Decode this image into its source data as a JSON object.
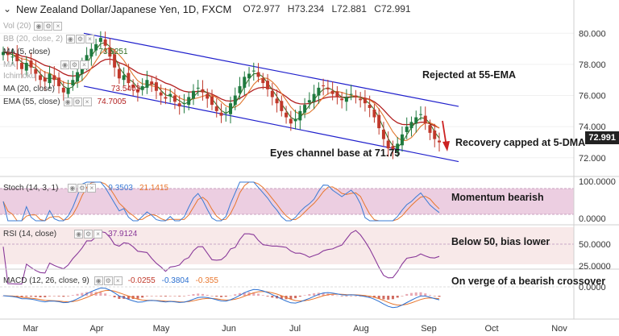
{
  "header": {
    "title": "New Zealand Dollar/Japanese Yen, 1D, FXCM",
    "open": "O72.977",
    "high": "H73.234",
    "low": "L72.881",
    "close": "C72.991"
  },
  "indicators": {
    "vol": "Vol (20)",
    "bb": "BB (20, close, 2)",
    "ma5": {
      "label": "MA (5, close)",
      "value": "73.5251"
    },
    "ma_hidden": "MA",
    "ichimoku": "Ichimoku",
    "ma20": {
      "label": "MA (20, close)",
      "value": "73.5403"
    },
    "ema55": {
      "label": "EMA (55, close)",
      "value": "74.7005"
    }
  },
  "annotations": {
    "rejected": "Rejected at 55-EMA",
    "recovery": "Recovery capped at 5-DMA",
    "channel": "Eyes channel base at 71.75",
    "momentum": "Momentum bearish",
    "rsi_note": "Below 50, bias lower",
    "macd_note": "On verge of a bearish crossover"
  },
  "price_tag": "72.991",
  "colors": {
    "up": "#1f7a3f",
    "down": "#c0392b",
    "channel": "#1f1fcc",
    "ma5": "#2e6b1e",
    "ma20": "#e0752b",
    "ema55": "#b21e1e",
    "stoch_k": "#3a7bd5",
    "stoch_d": "#e8762d",
    "rsi": "#8a3a9a",
    "macd": "#2a6fd0",
    "signal": "#e8762d"
  },
  "chart_data": {
    "type": "candlestick",
    "title": "New Zealand Dollar/Japanese Yen, 1D, FXCM",
    "x_labels": [
      "Mar",
      "Apr",
      "May",
      "Jun",
      "Jul",
      "Aug",
      "Sep",
      "Oct",
      "Nov"
    ],
    "price_ticks": [
      "80.000",
      "78.000",
      "76.000",
      "74.000",
      "72.000"
    ],
    "price_range": [
      70.9,
      81.0
    ],
    "closes": [
      78.8,
      78.6,
      78.5,
      78.2,
      77.7,
      78.1,
      77.8,
      77.4,
      77.0,
      76.9,
      77.4,
      77.0,
      76.6,
      76.2,
      76.5,
      77.0,
      77.5,
      78.0,
      78.6,
      79.0,
      79.3,
      79.7,
      79.2,
      78.5,
      77.8,
      77.1,
      77.3,
      76.8,
      76.5,
      76.2,
      76.6,
      77.0,
      76.7,
      76.3,
      76.0,
      75.8,
      76.1,
      75.6,
      75.3,
      75.5,
      75.9,
      76.3,
      76.5,
      76.2,
      75.8,
      75.4,
      75.0,
      74.7,
      74.9,
      75.5,
      76.0,
      76.6,
      77.2,
      77.4,
      77.6,
      77.2,
      76.8,
      76.4,
      75.9,
      75.5,
      75.0,
      74.6,
      74.2,
      74.5,
      75.0,
      75.4,
      75.7,
      76.1,
      76.5,
      76.6,
      76.4,
      76.1,
      75.9,
      75.7,
      75.9,
      76.1,
      75.9,
      75.7,
      75.5,
      75.2,
      74.6,
      73.9,
      73.2,
      72.6,
      72.5,
      72.9,
      73.5,
      74.0,
      74.3,
      74.6,
      74.8,
      74.2,
      73.6,
      73.2,
      72.99
    ],
    "channel": {
      "upper": [
        [
          0,
          80.0
        ],
        [
          94,
          75.3
        ]
      ],
      "lower": [
        [
          0,
          76.6
        ],
        [
          94,
          71.75
        ]
      ]
    },
    "ma5_last": 73.5251,
    "ma20_last": 73.5403,
    "ema55_last": 74.7005,
    "stoch": {
      "label": "Stoch (14, 3, 1)",
      "k": 9.3503,
      "d": 21.1415,
      "ticks": [
        "100.0000",
        "0.0000"
      ],
      "range": [
        0,
        100
      ]
    },
    "rsi": {
      "label": "RSI (14, close)",
      "value": 37.9124,
      "ticks": [
        "50.0000",
        "25.0000"
      ],
      "range": [
        20,
        75
      ]
    },
    "macd": {
      "label": "MACD (12, 26, close, 9)",
      "hist": -0.0255,
      "macd": -0.3804,
      "signal": -0.355,
      "ticks": [
        "0.0000"
      ],
      "range": [
        -1.6,
        1.6
      ]
    }
  }
}
